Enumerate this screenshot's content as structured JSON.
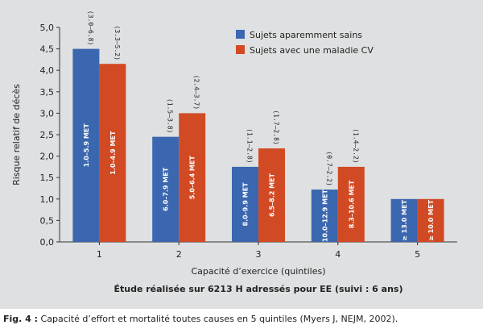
{
  "chart_data": {
    "type": "bar",
    "ylabel": "Risque relatif de décès",
    "xlabel": "Capacité d’exercice (quintiles)",
    "subtitle": "Étude réalisée sur 6213 H adressés pour EE (suivi : 6 ans)",
    "ylim": [
      0,
      5
    ],
    "yticks": [
      "0,0",
      "0,5",
      "1,0",
      "1,5",
      "2,0",
      "2,5",
      "3,0",
      "3,5",
      "4,0",
      "4,5",
      "5,0"
    ],
    "categories": [
      "1",
      "2",
      "3",
      "4",
      "5"
    ],
    "legend_position": "top-right",
    "grid": false,
    "series": [
      {
        "name": "Sujets aparemment sains",
        "color": "#3a67b0",
        "values": [
          4.5,
          2.45,
          1.75,
          1.22,
          1.0
        ],
        "ci": [
          "(3.0–6.8)",
          "(1.5–3.8)",
          "(1.1–2.8)",
          "(0.7–2.2)",
          ""
        ],
        "met": [
          "1.0–5.9 MET",
          "6.0–7.9 MET",
          "8.0–9.9 MET",
          "10.0–12.9 MET",
          "≥ 13.0 MET"
        ]
      },
      {
        "name": "Sujets avec une maladie CV",
        "color": "#d24a24",
        "values": [
          4.15,
          3.0,
          2.18,
          1.75,
          1.0
        ],
        "ci": [
          "(3.3–5.2)",
          "(2.4–3.7)",
          "(1.7–2.8)",
          "(1.4–2.2)",
          ""
        ],
        "met": [
          "1.0–4.9 MET",
          "5.0–6.4 MET",
          "6.5–8.2 MET",
          "8.3–10.6 MET",
          "≥ 10.0 MET"
        ]
      }
    ]
  },
  "caption": {
    "prefix": "Fig. 4 :",
    "text": " Capacité d’effort et mortalité toutes causes en 5 quintiles (Myers J, NEJM, 2002)."
  }
}
